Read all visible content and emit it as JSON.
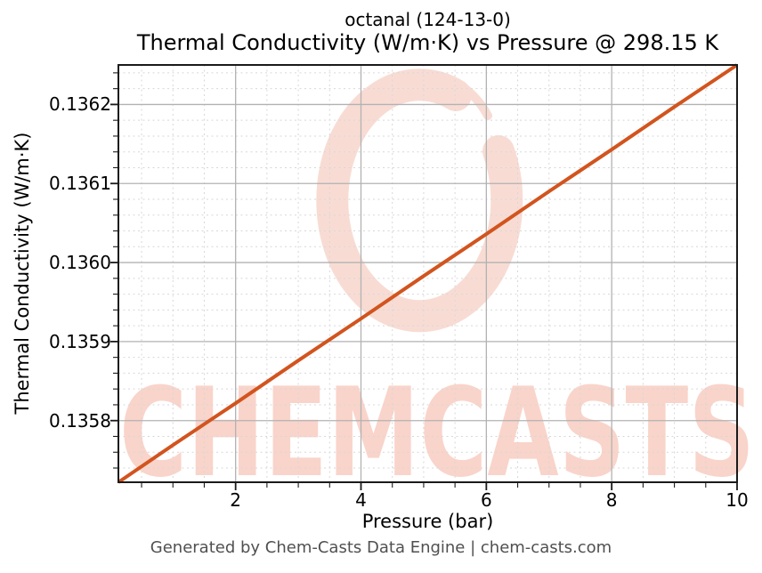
{
  "title": {
    "line1": "octanal (124-13-0)",
    "line2": "Thermal Conductivity (W/m·K) vs Pressure @ 298.15 K"
  },
  "axes": {
    "x_label": "Pressure (bar)",
    "y_label": "Thermal Conductivity (W/m·K)",
    "x_tick_labels": [
      "2",
      "4",
      "6",
      "8",
      "10"
    ],
    "y_tick_labels": [
      "0.1358",
      "0.1359",
      "0.1360",
      "0.1361",
      "0.1362"
    ]
  },
  "footer": {
    "text": "Generated by Chem-Casts Data Engine | chem-casts.com"
  },
  "watermark": {
    "text": "CHEMCASTS",
    "ring_color": "#f8dcd4",
    "text_color": "#f9d4ca"
  },
  "colors": {
    "line": "#d2541e",
    "grid_major": "#b2b2b2",
    "grid_minor": "#d7d7d7",
    "spine": "#1a1a1a",
    "tick": "#1a1a1a",
    "footer_text": "#505050"
  },
  "chart_data": {
    "type": "line",
    "title": "octanal (124-13-0)\nThermal Conductivity (W/m·K) vs Pressure @ 298.15 K",
    "xlabel": "Pressure (bar)",
    "ylabel": "Thermal Conductivity (W/m·K)",
    "xlim": [
      0.13,
      10.0
    ],
    "ylim": [
      0.135722,
      0.13625
    ],
    "x_major_ticks": [
      2,
      4,
      6,
      8,
      10
    ],
    "x_minor_step": 0.5,
    "y_major_ticks": [
      0.1358,
      0.1359,
      0.136,
      0.1361,
      0.1362
    ],
    "y_minor_step": 2e-05,
    "grid": "major solid, minor dashed, grid on",
    "legend": "none",
    "series": [
      {
        "name": "Thermal Conductivity (W/m·K)",
        "color": "#d2541e",
        "x": [
          0.13,
          1,
          2,
          3,
          4,
          5,
          6,
          7,
          8,
          9,
          10
        ],
        "y": [
          0.135722,
          0.135769,
          0.135822,
          0.135876,
          0.135929,
          0.135983,
          0.136036,
          0.13609,
          0.136143,
          0.136197,
          0.13625
        ]
      }
    ]
  }
}
